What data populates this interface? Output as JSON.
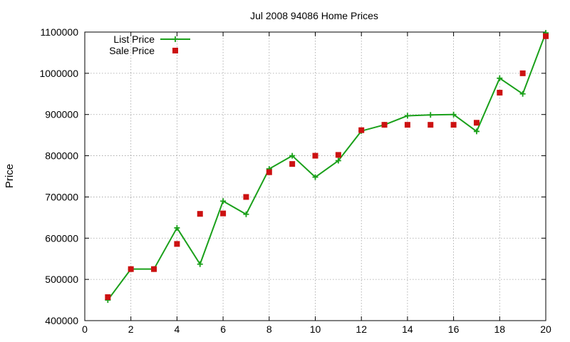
{
  "chart_data": {
    "type": "line",
    "title": "Jul 2008 94086 Home Prices",
    "xlabel": "",
    "ylabel": "Price",
    "xlim": [
      0,
      20
    ],
    "ylim": [
      400000,
      1100000
    ],
    "x_ticks": [
      0,
      2,
      4,
      6,
      8,
      10,
      12,
      14,
      16,
      18,
      20
    ],
    "y_ticks": [
      400000,
      500000,
      600000,
      700000,
      800000,
      900000,
      1000000,
      1100000
    ],
    "x_tick_labels": [
      "0",
      "2",
      "4",
      "6",
      "8",
      "10",
      "12",
      "14",
      "16",
      "18",
      "20"
    ],
    "y_tick_labels": [
      "400000",
      "500000",
      "600000",
      "700000",
      "800000",
      "900000",
      "1000000",
      "1100000"
    ],
    "grid": true,
    "legend_position": "top-left",
    "series": [
      {
        "name": "List Price",
        "style": "line-plus",
        "color": "#1aa01a",
        "x": [
          1,
          2,
          3,
          4,
          5,
          6,
          7,
          8,
          9,
          10,
          11,
          12,
          13,
          14,
          15,
          16,
          17,
          18,
          19,
          20
        ],
        "values": [
          450000,
          525000,
          525000,
          625000,
          537000,
          690000,
          658000,
          768000,
          800000,
          748000,
          788000,
          860000,
          875000,
          897000,
          899000,
          900000,
          859000,
          988000,
          950000,
          1098000
        ]
      },
      {
        "name": "Sale Price",
        "style": "square-markers",
        "color": "#cc1111",
        "x": [
          1,
          2,
          3,
          4,
          5,
          6,
          7,
          8,
          9,
          10,
          11,
          12,
          13,
          14,
          15,
          16,
          17,
          18,
          19,
          20
        ],
        "values": [
          457000,
          525000,
          525000,
          586000,
          659000,
          660000,
          700000,
          760000,
          780000,
          800000,
          802000,
          862000,
          875000,
          875000,
          875000,
          875000,
          880000,
          953000,
          1000000,
          1090000
        ]
      }
    ]
  }
}
